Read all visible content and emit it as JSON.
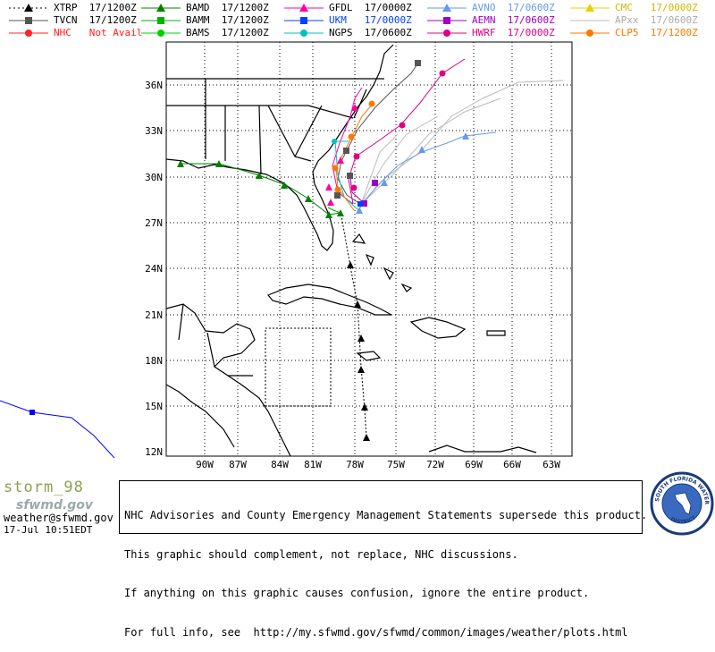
{
  "legend": [
    {
      "label": "XTRP  17/1200Z",
      "color": "#000000",
      "marker": "triangle",
      "dash": true
    },
    {
      "label": "TVCN  17/1200Z",
      "color": "#555555",
      "marker": "square"
    },
    {
      "label": "NHC   Not Avail",
      "color": "#ff2020",
      "marker": "circle"
    },
    {
      "label": "BAMD  17/1200Z",
      "color": "#008000",
      "marker": "triangle"
    },
    {
      "label": "BAMM  17/1200Z",
      "color": "#00b000",
      "marker": "square"
    },
    {
      "label": "BAMS  17/1200Z",
      "color": "#00d000",
      "marker": "circle"
    },
    {
      "label": "GFDL  17/0000Z",
      "color": "#ff00a0",
      "marker": "triangle"
    },
    {
      "label": "UKM   17/0000Z",
      "color": "#0040ff",
      "marker": "square"
    },
    {
      "label": "NGPS  17/0600Z",
      "color": "#00c0c0",
      "marker": "circle"
    },
    {
      "label": "AVNO  17/0600Z",
      "color": "#6699ee",
      "marker": "triangle"
    },
    {
      "label": "AEMN  17/0600Z",
      "color": "#a000c0",
      "marker": "square"
    },
    {
      "label": "HWRF  17/0000Z",
      "color": "#e0007f",
      "marker": "circle"
    },
    {
      "label": "CMC   17/0000Z",
      "color": "#e8d000",
      "marker": "triangle"
    },
    {
      "label": "APxx  17/0600Z",
      "color": "#bbbbbb",
      "marker": "none"
    },
    {
      "label": "CLP5  17/1200Z",
      "color": "#ff7700",
      "marker": "circle"
    }
  ],
  "axes": {
    "lat_labels": [
      "36N",
      "33N",
      "30N",
      "27N",
      "24N",
      "21N",
      "18N",
      "15N",
      "12N"
    ],
    "lon_labels": [
      "90W",
      "87W",
      "84W",
      "81W",
      "78W",
      "75W",
      "72W",
      "69W",
      "66W",
      "63W"
    ]
  },
  "storm_name": "storm_98",
  "logo_text": "sfwmd.gov",
  "email": "weather@sfwmd.gov",
  "timestamp": "17-Jul 10:51EDT",
  "disclaimer": [
    "NHC Advisories and County Emergency Management Statements supersede this product.",
    "This graphic should complement, not replace, NHC discussions.",
    "If anything on this graphic causes confusion, ignore the entire product.",
    "For full info, see  http://my.sfwmd.gov/sfwmd/common/images/weather/plots.html"
  ],
  "seal": {
    "top": "SOUTH FLORIDA WATER MANAGEMENT",
    "bottom": "DISTRICT"
  },
  "colors": {
    "grid": "#000000",
    "coast": "#000000",
    "background": "#ffffff"
  }
}
